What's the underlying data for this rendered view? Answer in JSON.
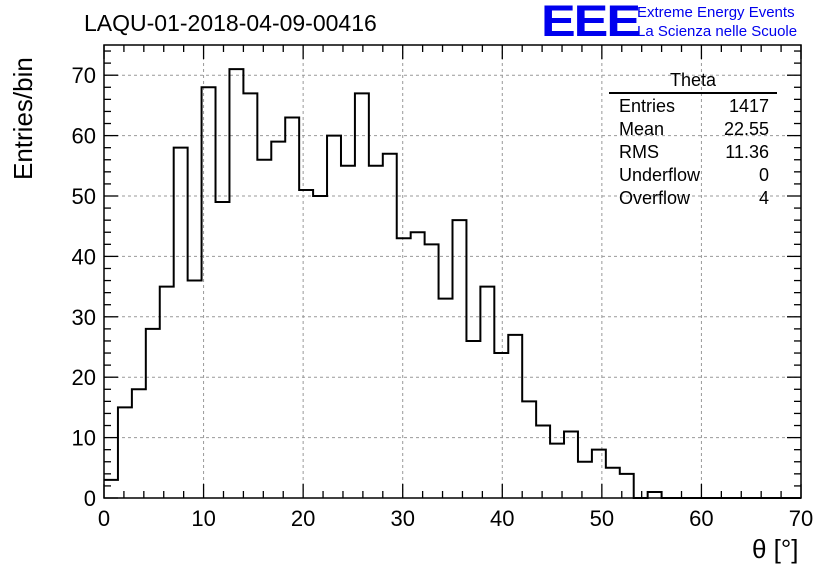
{
  "title": "LAQU-01-2018-04-09-00416",
  "logo": {
    "mark": "EEE",
    "line1": "Extreme Energy Events",
    "line2": "La Scienza nelle Scuole",
    "color": "#0000ee"
  },
  "stats": {
    "title": "Theta",
    "rows": [
      {
        "label": "Entries",
        "value": "1417"
      },
      {
        "label": "Mean",
        "value": "22.55"
      },
      {
        "label": "RMS",
        "value": "11.36"
      },
      {
        "label": "Underflow",
        "value": "0"
      },
      {
        "label": "Overflow",
        "value": "4"
      }
    ]
  },
  "chart_data": {
    "type": "histogram",
    "title": "LAQU-01-2018-04-09-00416",
    "xlabel": "θ [°]",
    "ylabel": "Entries/bin",
    "xlim": [
      0,
      70
    ],
    "ylim": [
      0,
      75
    ],
    "bin_width": 1.4,
    "x_ticks": [
      0,
      10,
      20,
      30,
      40,
      50,
      60,
      70
    ],
    "y_ticks": [
      0,
      10,
      20,
      30,
      40,
      50,
      60,
      70
    ],
    "grid": true,
    "line_color": "#000000",
    "values": [
      3,
      15,
      18,
      28,
      35,
      58,
      36,
      68,
      49,
      71,
      67,
      56,
      59,
      63,
      51,
      50,
      60,
      55,
      67,
      55,
      57,
      43,
      44,
      42,
      33,
      46,
      26,
      35,
      24,
      27,
      16,
      12,
      9,
      11,
      6,
      8,
      5,
      4,
      0,
      1,
      0,
      0,
      0,
      0,
      0,
      0,
      0,
      0,
      0,
      0
    ]
  }
}
